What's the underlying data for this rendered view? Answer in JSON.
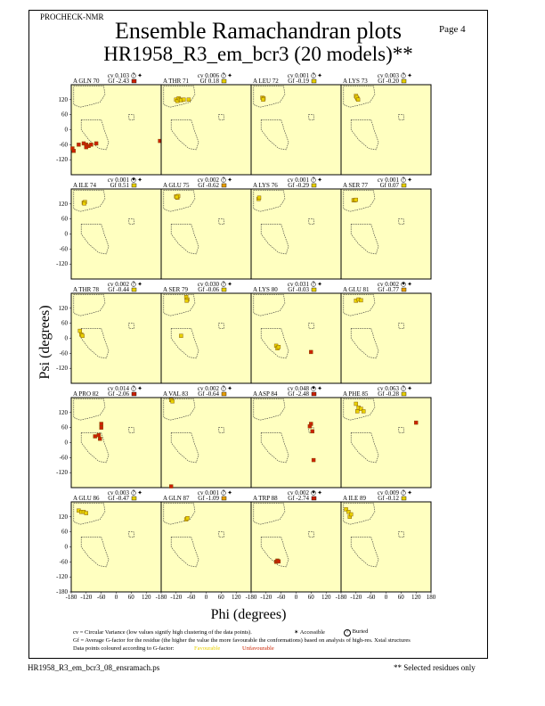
{
  "header": {
    "program": "PROCHECK-NMR",
    "page": "Page  4",
    "title": "Ensemble Ramachandran plots",
    "subtitle": "HR1958_R3_em_bcr3 (20 models)**"
  },
  "chart_data": {
    "type": "scatter",
    "xlabel": "Phi (degrees)",
    "ylabel": "Psi (degrees)",
    "xlim": [
      -180,
      180
    ],
    "ylim": [
      -180,
      180
    ],
    "x_ticks": [
      "-180",
      "-120",
      "-60",
      "0",
      "60",
      "120",
      "180"
    ],
    "x_ticks_last": [
      "-180",
      "-120",
      "-60",
      "0",
      "60",
      "120",
      "180"
    ],
    "y_ticks": [
      "120",
      "60",
      "0",
      "-60",
      "-120"
    ],
    "y_ticks_bottom": [
      "120",
      "60",
      "0",
      "-60",
      "-120",
      "-180"
    ],
    "colors": {
      "favourable": "#e8d000",
      "unfavourable": "#cc2200",
      "panel_bg": "#ffffc0"
    },
    "panels": [
      {
        "residue": "A GLN 70",
        "cv": "cv 0.103",
        "gf": "Gf -2.43",
        "sym": "?",
        "gfcolor": "#cc2200",
        "points": [
          [
            -175,
            -75
          ],
          [
            -170,
            -85
          ],
          [
            -150,
            -60
          ],
          [
            -130,
            -55
          ],
          [
            -120,
            -60
          ],
          [
            -110,
            -65
          ],
          [
            -120,
            -70
          ],
          [
            -100,
            -60
          ],
          [
            -80,
            -55
          ],
          [
            175,
            -45
          ]
        ]
      },
      {
        "residue": "A THR 71",
        "cv": "cv 0.006",
        "gf": "Gf 0.18",
        "sym": "?",
        "gfcolor": "#e8d000",
        "points": [
          [
            -120,
            120
          ],
          [
            -110,
            125
          ],
          [
            -115,
            115
          ],
          [
            -105,
            120
          ],
          [
            -100,
            118
          ],
          [
            -90,
            120
          ],
          [
            -70,
            120
          ]
        ]
      },
      {
        "residue": "A LEU 72",
        "cv": "cv 0.001",
        "gf": "Gf -0.19",
        "sym": "?",
        "gfcolor": "#e8d000",
        "points": [
          [
            -135,
            128
          ],
          [
            -130,
            125
          ],
          [
            -132,
            120
          ]
        ]
      },
      {
        "residue": "A LYS 73",
        "cv": "cv 0.003",
        "gf": "Gf -0.20",
        "sym": "?",
        "gfcolor": "#e8d000",
        "points": [
          [
            -120,
            135
          ],
          [
            -115,
            125
          ],
          [
            -118,
            130
          ],
          [
            -112,
            120
          ]
        ]
      },
      {
        "residue": "A ILE 74",
        "cv": "cv 0.001",
        "gf": "Gf 0.51",
        "sym": "✦",
        "gfcolor": "#e8d000",
        "points": [
          [
            -130,
            125
          ],
          [
            -125,
            128
          ],
          [
            -128,
            122
          ]
        ]
      },
      {
        "residue": "A GLU 75",
        "cv": "cv 0.002",
        "gf": "Gf -0.62",
        "sym": "?",
        "gfcolor": "#e8a000",
        "points": [
          [
            -120,
            150
          ],
          [
            -115,
            145
          ],
          [
            -112,
            152
          ],
          [
            -118,
            148
          ]
        ]
      },
      {
        "residue": "A LYS 76",
        "cv": "cv 0.001",
        "gf": "Gf -0.29",
        "sym": "?",
        "gfcolor": "#e8d000",
        "points": [
          [
            -150,
            140
          ],
          [
            -148,
            145
          ]
        ]
      },
      {
        "residue": "A SER 77",
        "cv": "cv 0.001",
        "gf": "Gf 0.07",
        "sym": "?",
        "gfcolor": "#e8d000",
        "points": [
          [
            -130,
            135
          ],
          [
            -125,
            135
          ],
          [
            -120,
            137
          ]
        ]
      },
      {
        "residue": "A THR 78",
        "cv": "cv 0.002",
        "gf": "Gf -0.44",
        "sym": "?",
        "gfcolor": "#e8d000",
        "points": [
          [
            -145,
            30
          ],
          [
            -140,
            15
          ],
          [
            -135,
            10
          ]
        ]
      },
      {
        "residue": "A SER 79",
        "cv": "cv 0.030",
        "gf": "Gf -0.06",
        "sym": "?",
        "gfcolor": "#e8d000",
        "points": [
          [
            -80,
            165
          ],
          [
            -75,
            155
          ],
          [
            -78,
            150
          ],
          [
            -100,
            10
          ]
        ]
      },
      {
        "residue": "A LYS 80",
        "cv": "cv 0.031",
        "gf": "Gf -0.03",
        "sym": "?",
        "gfcolor": "#e8d000",
        "points": [
          [
            -80,
            -30
          ],
          [
            -75,
            -40
          ],
          [
            -70,
            -35
          ],
          [
            60,
            -55
          ]
        ]
      },
      {
        "residue": "A GLU 81",
        "cv": "cv 0.002",
        "gf": "Gf -0.77",
        "sym": "✦",
        "gfcolor": "#e8a000",
        "points": [
          [
            -120,
            150
          ],
          [
            -110,
            155
          ],
          [
            -100,
            152
          ]
        ]
      },
      {
        "residue": "A PRO 82",
        "cv": "cv 0.014",
        "gf": "Gf -2.06",
        "sym": "?",
        "gfcolor": "#cc2200",
        "points": [
          [
            -60,
            75
          ],
          [
            -60,
            60
          ],
          [
            -70,
            30
          ],
          [
            -65,
            15
          ],
          [
            -85,
            25
          ]
        ]
      },
      {
        "residue": "A VAL 83",
        "cv": "cv 0.002",
        "gf": "Gf -0.64",
        "sym": "?",
        "gfcolor": "#e8a000",
        "points": [
          [
            -140,
            170
          ],
          [
            -135,
            165
          ],
          [
            -140,
            -175
          ]
        ]
      },
      {
        "residue": "A ASP 84",
        "cv": "cv 0.048",
        "gf": "Gf -2.48",
        "sym": "✦",
        "gfcolor": "#cc2200",
        "points": [
          [
            60,
            75
          ],
          [
            55,
            65
          ],
          [
            65,
            45
          ],
          [
            70,
            -70
          ]
        ]
      },
      {
        "residue": "A PHE 85",
        "cv": "cv 0.063",
        "gf": "Gf -0.28",
        "sym": "?",
        "gfcolor": "#e8d000",
        "points": [
          [
            -120,
            155
          ],
          [
            -110,
            140
          ],
          [
            -100,
            135
          ],
          [
            -90,
            125
          ],
          [
            -115,
            125
          ],
          [
            120,
            80
          ]
        ]
      },
      {
        "residue": "A GLU 86",
        "cv": "cv 0.003",
        "gf": "Gf -0.47",
        "sym": "?",
        "gfcolor": "#e8d000",
        "points": [
          [
            -150,
            145
          ],
          [
            -140,
            140
          ],
          [
            -130,
            140
          ],
          [
            -120,
            135
          ]
        ]
      },
      {
        "residue": "A GLN 87",
        "cv": "cv 0.001",
        "gf": "Gf -1.09",
        "sym": "?",
        "gfcolor": "#e8a000",
        "points": [
          [
            -80,
            110
          ],
          [
            -75,
            115
          ]
        ]
      },
      {
        "residue": "A TRP 88",
        "cv": "cv 0.002",
        "gf": "Gf -2.74",
        "sym": "✦",
        "gfcolor": "#cc2200",
        "points": [
          [
            -80,
            -60
          ],
          [
            -75,
            -55
          ],
          [
            -70,
            -58
          ]
        ]
      },
      {
        "residue": "A ILE 89",
        "cv": "cv 0.009",
        "gf": "Gf -0.12",
        "sym": "?",
        "gfcolor": "#e8d000",
        "points": [
          [
            -160,
            150
          ],
          [
            -150,
            140
          ],
          [
            -145,
            120
          ],
          [
            -140,
            130
          ]
        ]
      }
    ]
  },
  "legend": {
    "line1": "cv = Circular Variance (low values signify high clustering of the data points).",
    "accessible": "Accessible",
    "buried": "Buried",
    "line2": "Gf = Average G-factor for the residue (the higher the value the more favourable the conformations) based on analysis of high-res. Xstal structures",
    "line3": "Data points coloured according to G-factor:",
    "favourable": "Favourable",
    "unfavourable": "Unfavourable"
  },
  "footer": {
    "file": "HR1958_R3_em_bcr3_08_ensramach.ps",
    "note": "** Selected residues only"
  }
}
